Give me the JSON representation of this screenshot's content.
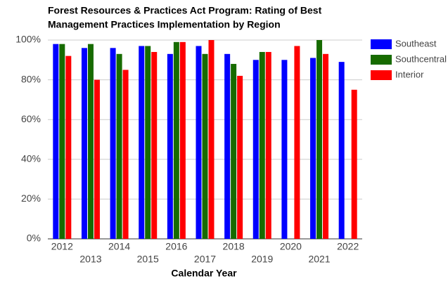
{
  "chart_data": {
    "type": "bar",
    "title": [
      "Forest Resources & Practices Act Program: Rating of Best",
      "Management Practices Implementation by Region"
    ],
    "x_label": "Calendar Year",
    "categories": [
      "2012",
      "2013",
      "2014",
      "2015",
      "2016",
      "2017",
      "2018",
      "2019",
      "2020",
      "2021",
      "2022"
    ],
    "series": [
      {
        "name": "Southeast",
        "color": "#0000ff",
        "values": [
          98,
          96,
          96,
          97,
          93,
          97,
          93,
          90,
          90,
          91,
          89
        ]
      },
      {
        "name": "Southcentral",
        "color": "#176b00",
        "values": [
          98,
          98,
          93,
          97,
          99,
          93,
          88,
          94,
          null,
          100,
          null
        ]
      },
      {
        "name": "Interior",
        "color": "#ff0000",
        "values": [
          92,
          80,
          85,
          94,
          99,
          100,
          82,
          94,
          97,
          93,
          75
        ]
      }
    ],
    "ylim": [
      0,
      100
    ],
    "yticks": [
      {
        "value": 0,
        "label": "0%"
      },
      {
        "value": 20,
        "label": "20%"
      },
      {
        "value": 40,
        "label": "40%"
      },
      {
        "value": 60,
        "label": "60%"
      },
      {
        "value": 80,
        "label": "80%"
      },
      {
        "value": 100,
        "label": "100%"
      }
    ],
    "grid": true,
    "legend": "right"
  }
}
